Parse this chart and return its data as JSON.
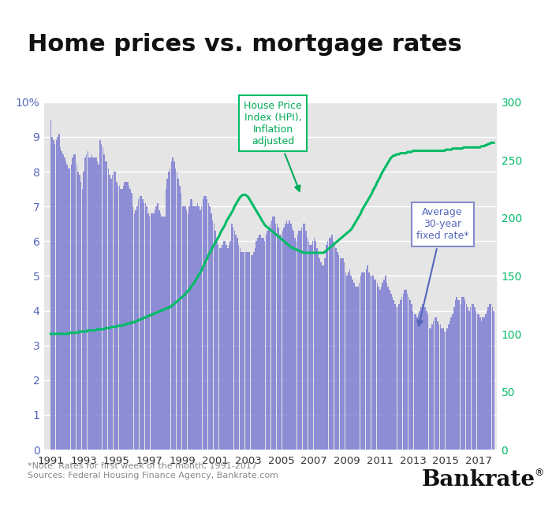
{
  "title": "Home prices vs. mortgage rates",
  "title_fontsize": 22,
  "background_color": "#ffffff",
  "plot_background": "#e5e5e5",
  "bar_color": "#8484d4",
  "bar_alpha": 0.9,
  "line_color": "#00bb66",
  "left_ylim": [
    0,
    10
  ],
  "right_ylim": [
    0,
    300
  ],
  "left_yticks": [
    0,
    1,
    2,
    3,
    4,
    5,
    6,
    7,
    8,
    9
  ],
  "left_yticklabel_top": "10%",
  "right_yticks": [
    0,
    50,
    100,
    150,
    200,
    250,
    300
  ],
  "right_yticklabels": [
    "0",
    "50",
    "100",
    "150",
    "200",
    "250",
    "300"
  ],
  "xtick_years": [
    1991,
    1993,
    1995,
    1997,
    1999,
    2001,
    2003,
    2005,
    2007,
    2009,
    2011,
    2013,
    2015,
    2017
  ],
  "note_text": "*Note: Rates for first week of the month, 1991-2017\nSources: Federal Housing Finance Agency, Bankrate.com",
  "bankrate_text": "Bankrate",
  "hpi_annotation": "House Price\nIndex (HPI),\nInflation\nadjusted",
  "rate_annotation": "Average\n30-year\nfixed rate*",
  "mortgage_rates_monthly": [
    9.5,
    9.0,
    8.9,
    8.8,
    8.9,
    9.0,
    9.1,
    8.7,
    8.6,
    8.5,
    8.4,
    8.3,
    8.2,
    8.1,
    8.1,
    8.2,
    8.4,
    8.5,
    8.5,
    8.2,
    8.0,
    7.9,
    7.7,
    7.5,
    8.0,
    8.4,
    8.5,
    8.6,
    8.4,
    8.4,
    8.5,
    8.4,
    8.4,
    8.4,
    8.3,
    8.2,
    8.9,
    8.8,
    8.7,
    8.5,
    8.3,
    8.3,
    8.1,
    7.9,
    7.8,
    7.9,
    8.0,
    8.0,
    7.7,
    7.6,
    7.6,
    7.5,
    7.5,
    7.6,
    7.7,
    7.7,
    7.7,
    7.6,
    7.5,
    7.4,
    7.0,
    6.8,
    6.9,
    7.0,
    7.2,
    7.3,
    7.3,
    7.2,
    7.1,
    7.1,
    7.0,
    6.8,
    6.7,
    6.8,
    6.8,
    6.8,
    6.9,
    7.0,
    7.1,
    6.9,
    6.8,
    6.7,
    6.7,
    6.7,
    7.5,
    7.8,
    8.0,
    8.1,
    8.3,
    8.4,
    8.3,
    8.1,
    8.0,
    7.8,
    7.6,
    7.4,
    7.0,
    7.0,
    7.0,
    6.9,
    6.8,
    7.0,
    7.2,
    7.2,
    7.0,
    7.0,
    7.0,
    7.1,
    7.0,
    6.9,
    7.0,
    7.2,
    7.3,
    7.3,
    7.2,
    7.1,
    7.0,
    6.8,
    6.6,
    6.5,
    6.3,
    6.1,
    5.9,
    5.8,
    5.8,
    5.9,
    6.0,
    6.0,
    5.9,
    5.8,
    5.9,
    6.0,
    6.5,
    6.4,
    6.3,
    6.2,
    6.1,
    5.9,
    5.8,
    5.7,
    5.7,
    5.7,
    5.7,
    5.7,
    5.7,
    5.7,
    5.6,
    5.6,
    5.7,
    5.8,
    6.0,
    6.1,
    6.2,
    6.2,
    6.1,
    6.1,
    6.0,
    6.2,
    6.3,
    6.4,
    6.5,
    6.6,
    6.7,
    6.7,
    6.5,
    6.5,
    6.4,
    6.2,
    6.2,
    6.3,
    6.4,
    6.5,
    6.6,
    6.5,
    6.6,
    6.5,
    6.4,
    6.3,
    6.1,
    6.0,
    6.2,
    6.3,
    6.3,
    6.4,
    6.5,
    6.5,
    6.3,
    6.1,
    6.0,
    5.9,
    5.9,
    6.0,
    6.1,
    6.0,
    5.8,
    5.7,
    5.5,
    5.4,
    5.3,
    5.3,
    5.5,
    5.9,
    6.0,
    6.1,
    6.1,
    6.2,
    6.0,
    5.9,
    5.8,
    5.7,
    5.6,
    5.5,
    5.5,
    5.5,
    5.4,
    5.1,
    5.0,
    5.1,
    5.2,
    5.0,
    4.9,
    4.8,
    4.7,
    4.7,
    4.7,
    4.8,
    5.0,
    5.1,
    5.1,
    5.1,
    5.2,
    5.3,
    5.1,
    5.0,
    5.0,
    5.0,
    4.9,
    4.9,
    4.8,
    4.7,
    4.6,
    4.7,
    4.8,
    4.9,
    5.0,
    4.8,
    4.7,
    4.6,
    4.5,
    4.4,
    4.3,
    4.2,
    4.1,
    4.1,
    4.2,
    4.3,
    4.4,
    4.5,
    4.6,
    4.6,
    4.5,
    4.4,
    4.3,
    4.2,
    4.0,
    3.9,
    3.9,
    3.8,
    3.9,
    4.0,
    4.1,
    4.2,
    4.2,
    4.1,
    4.0,
    3.9,
    3.5,
    3.5,
    3.6,
    3.7,
    3.8,
    3.8,
    3.7,
    3.6,
    3.6,
    3.5,
    3.5,
    3.4,
    3.4,
    3.5,
    3.6,
    3.7,
    3.8,
    3.9,
    4.1,
    4.3,
    4.4,
    4.3,
    4.3,
    4.2,
    4.4,
    4.4,
    4.3,
    4.2,
    4.1,
    4.0,
    4.1,
    4.2,
    4.2,
    4.1,
    4.0,
    3.9,
    3.9,
    3.8,
    3.7,
    3.8,
    3.8,
    3.9,
    4.0,
    4.1,
    4.2,
    4.2,
    4.1,
    4.0,
    3.9,
    3.9,
    4.0,
    4.1,
    4.2,
    4.3,
    4.3,
    4.2,
    4.1,
    4.0,
    4.0,
    4.1
  ],
  "hpi_monthly": [
    100,
    100,
    100,
    100,
    100,
    100,
    100,
    100,
    100,
    100,
    100,
    100,
    100,
    100,
    101,
    101,
    101,
    101,
    101,
    101,
    101,
    102,
    102,
    102,
    102,
    102,
    102,
    103,
    103,
    103,
    103,
    103,
    103,
    103,
    104,
    104,
    104,
    104,
    104,
    104,
    105,
    105,
    105,
    105,
    106,
    106,
    106,
    106,
    106,
    107,
    107,
    107,
    107,
    108,
    108,
    108,
    109,
    109,
    109,
    110,
    110,
    110,
    111,
    111,
    112,
    112,
    113,
    113,
    114,
    114,
    115,
    115,
    116,
    116,
    117,
    117,
    118,
    118,
    119,
    119,
    120,
    120,
    121,
    121,
    122,
    122,
    123,
    123,
    124,
    125,
    126,
    127,
    128,
    129,
    130,
    131,
    132,
    133,
    134,
    136,
    137,
    138,
    140,
    142,
    143,
    145,
    147,
    149,
    151,
    153,
    155,
    158,
    160,
    163,
    165,
    168,
    170,
    172,
    175,
    177,
    179,
    181,
    183,
    185,
    188,
    190,
    192,
    194,
    197,
    199,
    201,
    203,
    205,
    207,
    210,
    212,
    214,
    216,
    218,
    219,
    220,
    220,
    220,
    219,
    218,
    216,
    214,
    212,
    210,
    208,
    206,
    204,
    202,
    200,
    198,
    196,
    194,
    193,
    192,
    191,
    190,
    189,
    188,
    187,
    186,
    185,
    184,
    183,
    182,
    181,
    180,
    179,
    178,
    177,
    176,
    175,
    174,
    174,
    173,
    173,
    172,
    172,
    171,
    171,
    170,
    170,
    170,
    170,
    170,
    170,
    170,
    170,
    170,
    170,
    170,
    170,
    170,
    170,
    170,
    170,
    171,
    172,
    173,
    174,
    175,
    176,
    177,
    178,
    179,
    180,
    181,
    182,
    183,
    184,
    185,
    186,
    187,
    188,
    189,
    190,
    192,
    194,
    196,
    198,
    200,
    202,
    204,
    207,
    209,
    211,
    213,
    215,
    217,
    219,
    221,
    224,
    226,
    228,
    231,
    233,
    235,
    238,
    240,
    242,
    244,
    246,
    248,
    250,
    252,
    253,
    254,
    254,
    255,
    255,
    255,
    256,
    256,
    256,
    256,
    256,
    257,
    257,
    257,
    257,
    258,
    258,
    258,
    258,
    258,
    258,
    258,
    258,
    258,
    258,
    258,
    258,
    258,
    258,
    258,
    258,
    258,
    258,
    258,
    258,
    258,
    258,
    258,
    258,
    259,
    259,
    259,
    259,
    259,
    260,
    260,
    260,
    260,
    260,
    260,
    260,
    260,
    261,
    261,
    261,
    261,
    261,
    261,
    261,
    261,
    261,
    261,
    261,
    261,
    261,
    262,
    262,
    262,
    263,
    263,
    264,
    264,
    265,
    265,
    265,
    265,
    265,
    265,
    265,
    265,
    265,
    265,
    265,
    265,
    265,
    265,
    265
  ]
}
